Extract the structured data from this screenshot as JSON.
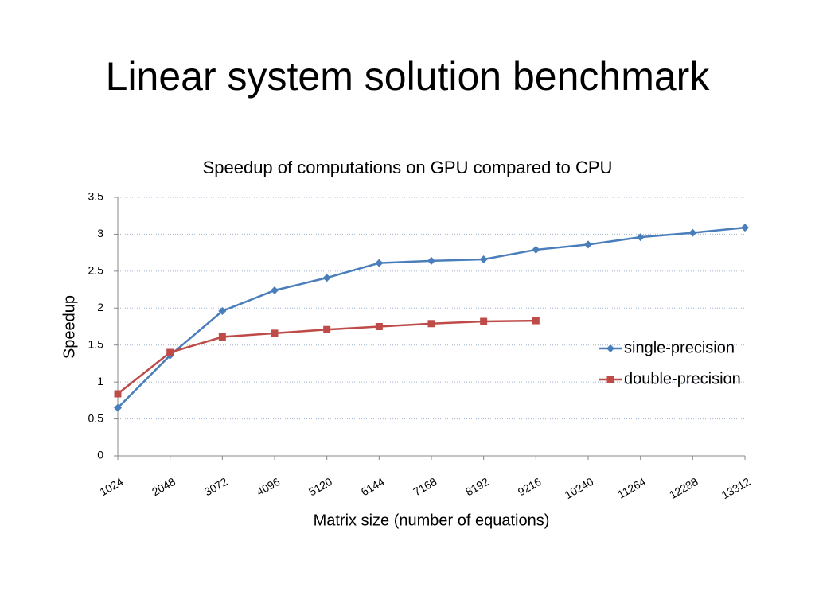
{
  "title": "Linear system solution benchmark",
  "chart_data": {
    "type": "line",
    "title": "Speedup of computations on GPU compared to CPU",
    "x_label": "Matrix size (number of equations)",
    "y_label": "Speedup",
    "categories": [
      "1024",
      "2048",
      "3072",
      "4096",
      "5120",
      "6144",
      "7168",
      "8192",
      "9216",
      "10240",
      "11264",
      "12288",
      "13312"
    ],
    "series": [
      {
        "name": "single-precision",
        "color": "#4a7ebb",
        "marker": "diamond",
        "values": [
          0.65,
          1.36,
          1.96,
          2.24,
          2.41,
          2.61,
          2.64,
          2.66,
          2.79,
          2.86,
          2.96,
          3.02,
          3.09
        ]
      },
      {
        "name": "double-precision",
        "color": "#be4b48",
        "marker": "square",
        "values": [
          0.84,
          1.4,
          1.61,
          1.66,
          1.71,
          1.75,
          1.79,
          1.82,
          1.83,
          null,
          null,
          null,
          null
        ]
      }
    ],
    "ylim": [
      0,
      3.5
    ],
    "yticks": [
      0,
      0.5,
      1,
      1.5,
      2,
      2.5,
      3,
      3.5
    ],
    "grid": true,
    "legend": "right"
  }
}
